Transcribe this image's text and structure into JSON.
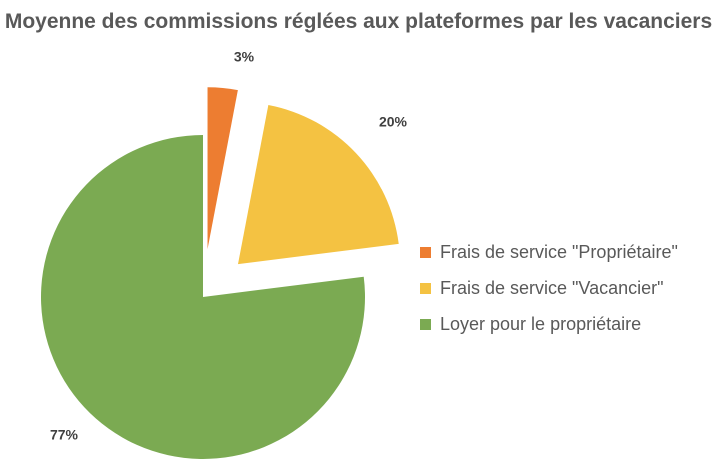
{
  "chart_data": {
    "type": "pie",
    "title": "Moyenne des commissions réglées aux plateformes par les vacanciers",
    "series": [
      {
        "name": "Frais de service \"Propriétaire\"",
        "value": 3,
        "label": "3%",
        "color": "#ED7D31",
        "exploded": true
      },
      {
        "name": "Frais de service \"Vacancier\"",
        "value": 20,
        "label": "20%",
        "color": "#F4C242",
        "exploded": true
      },
      {
        "name": "Loyer pour le propriétaire",
        "value": 77,
        "label": "77%",
        "color": "#7BAA52",
        "exploded": false
      }
    ],
    "legend": "right"
  }
}
